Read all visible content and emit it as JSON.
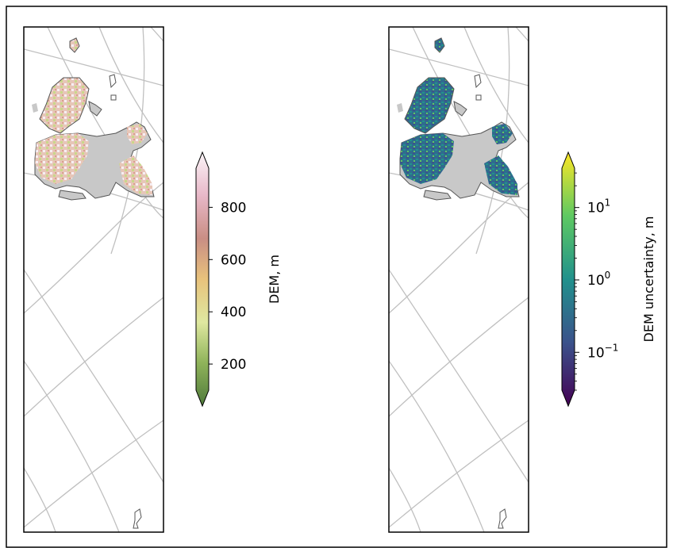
{
  "colorbar_dem": {
    "label": "DEM, m",
    "ticks": [
      {
        "value": 200,
        "label": "200"
      },
      {
        "value": 400,
        "label": "400"
      },
      {
        "value": 600,
        "label": "600"
      },
      {
        "value": 800,
        "label": "800"
      }
    ],
    "range": [
      100,
      950
    ],
    "extend": "both",
    "colormap": "gist_earth-like (green → yellow → tan → pink → white)",
    "colors": [
      "#4f7a3b",
      "#8fb35a",
      "#dfe8a0",
      "#e8c27c",
      "#c98e84",
      "#e8b8c8",
      "#fbf5f8"
    ]
  },
  "colorbar_unc": {
    "label": "DEM uncertainty, m",
    "scale": "log",
    "ticks": [
      {
        "value": 0.1,
        "base": "10",
        "exp": "−1"
      },
      {
        "value": 1,
        "base": "10",
        "exp": "0"
      },
      {
        "value": 10,
        "base": "10",
        "exp": "1"
      }
    ],
    "range": [
      0.03,
      35
    ],
    "extend": "both",
    "colormap": "viridis",
    "colors": [
      "#440154",
      "#3b528b",
      "#21918c",
      "#5ec962",
      "#fde725"
    ]
  },
  "maps": [
    {
      "name": "DEM",
      "colormap_ref": "colorbar_dem"
    },
    {
      "name": "DEM uncertainty",
      "colormap_ref": "colorbar_unc"
    }
  ],
  "colors": {
    "land": "#c8c8c8",
    "coast": "#555555",
    "graticule": "#c0c0c0",
    "frame": "#000000"
  }
}
